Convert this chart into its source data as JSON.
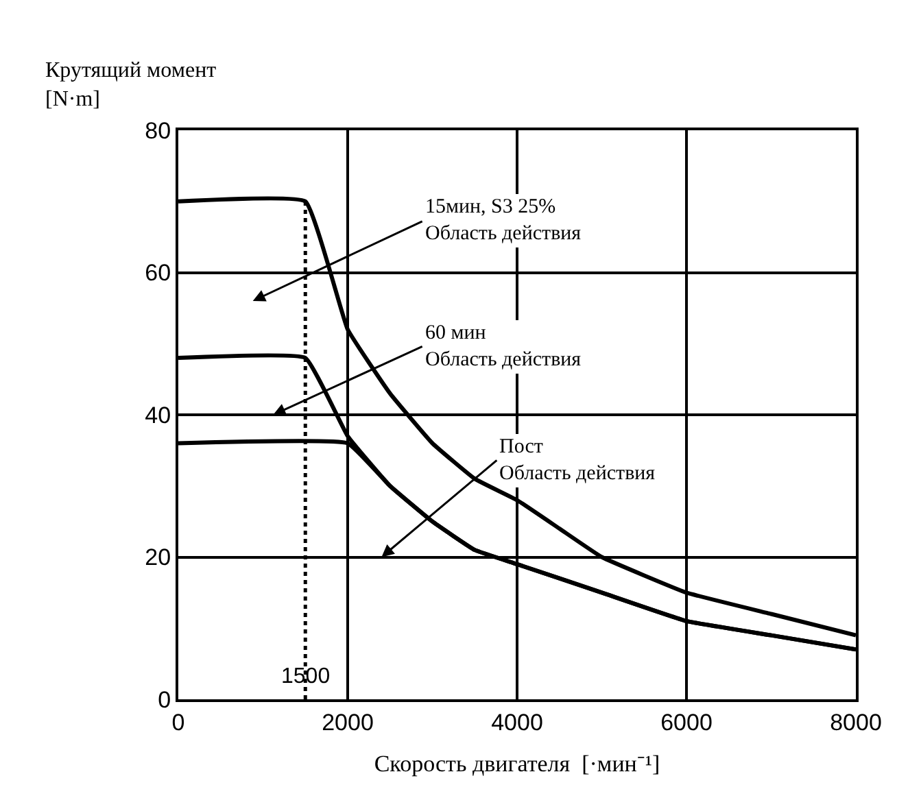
{
  "chart_data": {
    "type": "line",
    "xlabel": "Скорость двигателя  [·мин⁻¹]",
    "ylabel": "Крутящий момент\n[N·m]",
    "xlim": [
      0,
      8000
    ],
    "ylim": [
      0,
      80
    ],
    "xticks": [
      0,
      2000,
      4000,
      6000,
      8000
    ],
    "yticks": [
      0,
      20,
      40,
      60,
      80
    ],
    "grid": true,
    "marker": "none",
    "line_style": "solid",
    "series": [
      {
        "color": "#000000",
        "x": [
          0,
          1500,
          2000,
          2500,
          3000,
          3500,
          4000,
          4500,
          5000,
          6000,
          7000,
          8000
        ],
        "values": [
          70,
          70,
          52,
          43,
          36,
          31,
          28,
          24,
          20,
          15,
          12,
          9
        ]
      },
      {
        "color": "#000000",
        "x": [
          0,
          1500,
          2000,
          2500,
          3000,
          3500,
          4000,
          5000,
          6000,
          7000,
          8000
        ],
        "values": [
          48,
          48,
          37,
          30,
          25,
          21,
          19,
          15,
          11,
          9,
          7
        ]
      },
      {
        "color": "#000000",
        "x": [
          0,
          2000,
          2500,
          3000,
          3500,
          4000,
          5000,
          6000,
          7000,
          8000
        ],
        "values": [
          36,
          36,
          30,
          25,
          21,
          19,
          15,
          11,
          9,
          7
        ]
      }
    ],
    "ref_lines": [
      {
        "axis": "x",
        "value": 1500,
        "label": "1500",
        "line_style": "dotted",
        "color": "#000000"
      }
    ],
    "annotations": [
      "15мин, S3 25%\nОбласть действия",
      "60 мин\nОбласть действия",
      "Пост\nОбласть действия"
    ]
  }
}
